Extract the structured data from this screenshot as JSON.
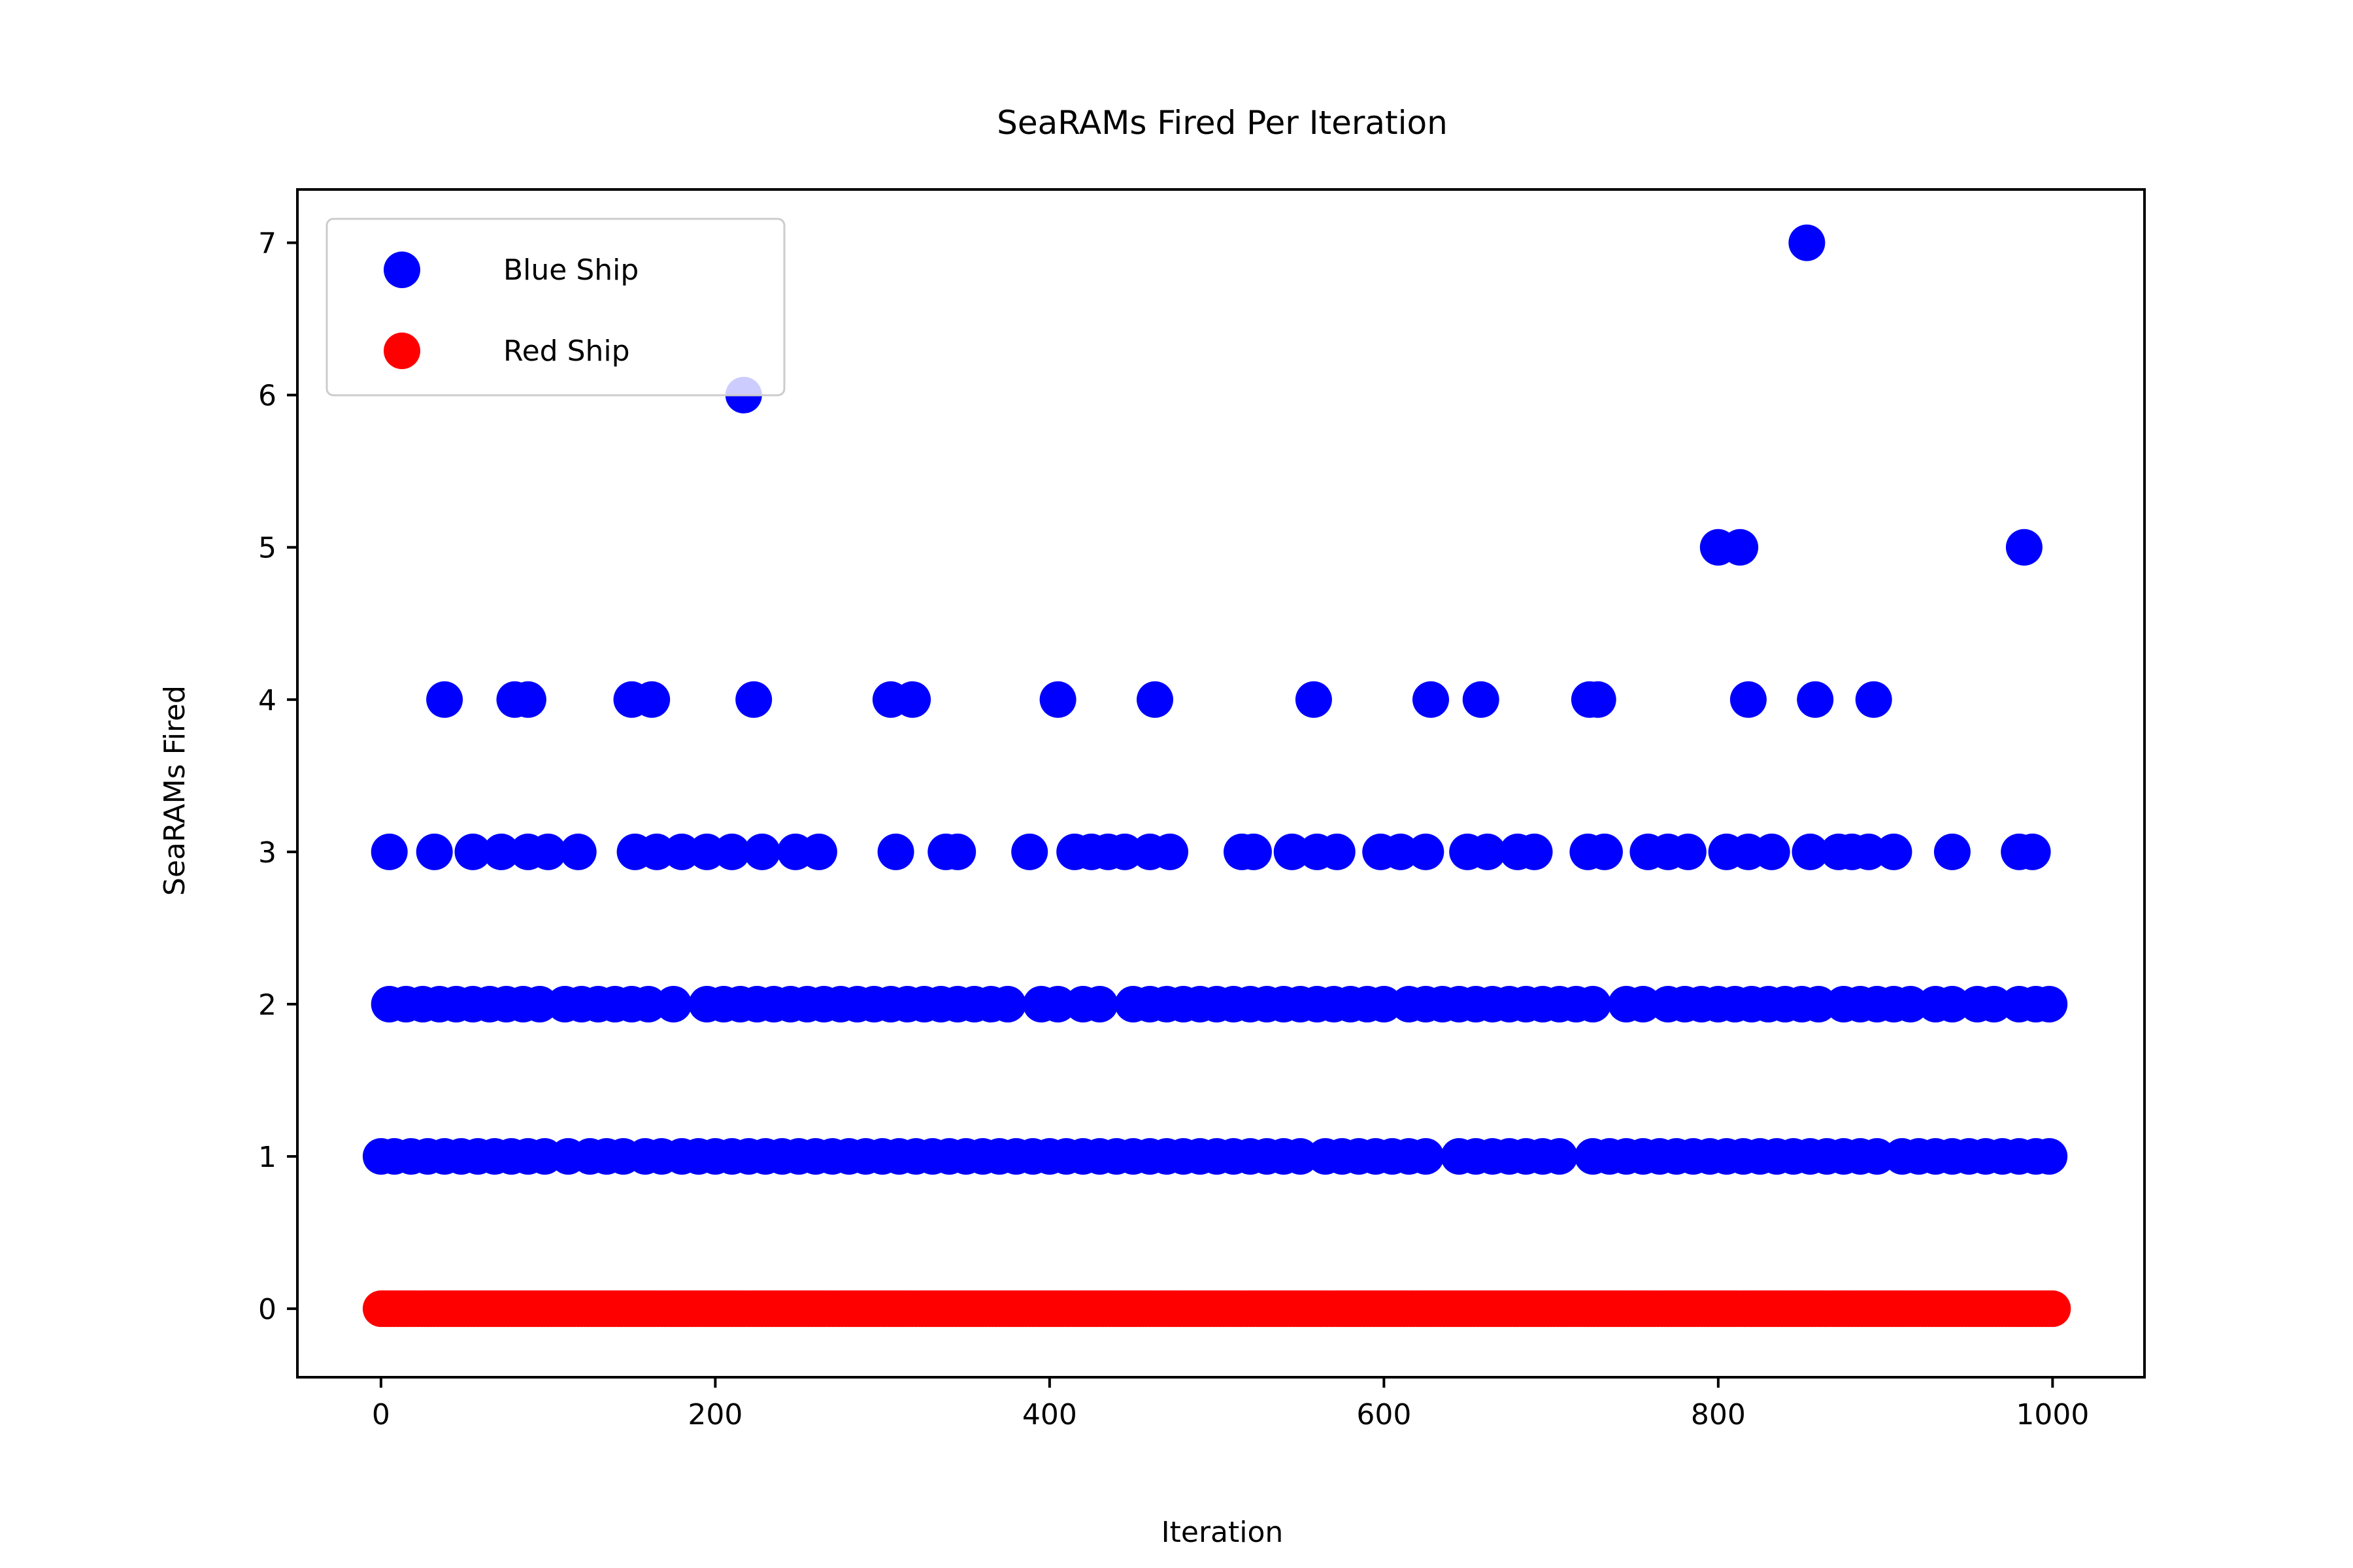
{
  "chart_data": {
    "type": "scatter",
    "title": "SeaRAMs Fired Per Iteration",
    "xlabel": "Iteration",
    "ylabel": "SeaRAMs Fired",
    "xlim": [
      -50,
      1055
    ],
    "ylim": [
      -0.45,
      7.35
    ],
    "xticks": [
      0,
      200,
      400,
      600,
      800,
      1000
    ],
    "yticks": [
      0,
      1,
      2,
      3,
      4,
      5,
      6,
      7
    ],
    "grid": false,
    "legend": {
      "position": "top-left",
      "entries": [
        "Blue Ship",
        "Red Ship"
      ]
    },
    "series": [
      {
        "name": "Blue Ship",
        "color": "#0000ff",
        "points": [
          [
            217,
            6
          ],
          [
            853,
            7
          ],
          [
            800,
            5
          ],
          [
            813,
            5
          ],
          [
            983,
            5
          ],
          [
            38,
            4
          ],
          [
            80,
            4
          ],
          [
            88,
            4
          ],
          [
            150,
            4
          ],
          [
            162,
            4
          ],
          [
            223,
            4
          ],
          [
            305,
            4
          ],
          [
            318,
            4
          ],
          [
            405,
            4
          ],
          [
            463,
            4
          ],
          [
            558,
            4
          ],
          [
            628,
            4
          ],
          [
            658,
            4
          ],
          [
            723,
            4
          ],
          [
            728,
            4
          ],
          [
            818,
            4
          ],
          [
            858,
            4
          ],
          [
            893,
            4
          ],
          [
            5,
            3
          ],
          [
            32,
            3
          ],
          [
            55,
            3
          ],
          [
            72,
            3
          ],
          [
            88,
            3
          ],
          [
            100,
            3
          ],
          [
            118,
            3
          ],
          [
            152,
            3
          ],
          [
            165,
            3
          ],
          [
            180,
            3
          ],
          [
            195,
            3
          ],
          [
            210,
            3
          ],
          [
            228,
            3
          ],
          [
            248,
            3
          ],
          [
            262,
            3
          ],
          [
            308,
            3
          ],
          [
            338,
            3
          ],
          [
            345,
            3
          ],
          [
            388,
            3
          ],
          [
            415,
            3
          ],
          [
            425,
            3
          ],
          [
            435,
            3
          ],
          [
            445,
            3
          ],
          [
            460,
            3
          ],
          [
            472,
            3
          ],
          [
            515,
            3
          ],
          [
            522,
            3
          ],
          [
            545,
            3
          ],
          [
            560,
            3
          ],
          [
            572,
            3
          ],
          [
            598,
            3
          ],
          [
            610,
            3
          ],
          [
            625,
            3
          ],
          [
            650,
            3
          ],
          [
            662,
            3
          ],
          [
            680,
            3
          ],
          [
            690,
            3
          ],
          [
            722,
            3
          ],
          [
            732,
            3
          ],
          [
            758,
            3
          ],
          [
            770,
            3
          ],
          [
            782,
            3
          ],
          [
            805,
            3
          ],
          [
            818,
            3
          ],
          [
            832,
            3
          ],
          [
            855,
            3
          ],
          [
            872,
            3
          ],
          [
            880,
            3
          ],
          [
            890,
            3
          ],
          [
            905,
            3
          ],
          [
            940,
            3
          ],
          [
            980,
            3
          ],
          [
            988,
            3
          ],
          [
            5,
            2
          ],
          [
            15,
            2
          ],
          [
            25,
            2
          ],
          [
            35,
            2
          ],
          [
            45,
            2
          ],
          [
            55,
            2
          ],
          [
            65,
            2
          ],
          [
            75,
            2
          ],
          [
            85,
            2
          ],
          [
            95,
            2
          ],
          [
            110,
            2
          ],
          [
            120,
            2
          ],
          [
            130,
            2
          ],
          [
            140,
            2
          ],
          [
            150,
            2
          ],
          [
            160,
            2
          ],
          [
            175,
            2
          ],
          [
            195,
            2
          ],
          [
            205,
            2
          ],
          [
            215,
            2
          ],
          [
            225,
            2
          ],
          [
            235,
            2
          ],
          [
            245,
            2
          ],
          [
            255,
            2
          ],
          [
            265,
            2
          ],
          [
            275,
            2
          ],
          [
            285,
            2
          ],
          [
            295,
            2
          ],
          [
            305,
            2
          ],
          [
            315,
            2
          ],
          [
            325,
            2
          ],
          [
            335,
            2
          ],
          [
            345,
            2
          ],
          [
            355,
            2
          ],
          [
            365,
            2
          ],
          [
            375,
            2
          ],
          [
            395,
            2
          ],
          [
            405,
            2
          ],
          [
            420,
            2
          ],
          [
            430,
            2
          ],
          [
            450,
            2
          ],
          [
            460,
            2
          ],
          [
            470,
            2
          ],
          [
            480,
            2
          ],
          [
            490,
            2
          ],
          [
            500,
            2
          ],
          [
            510,
            2
          ],
          [
            520,
            2
          ],
          [
            530,
            2
          ],
          [
            540,
            2
          ],
          [
            550,
            2
          ],
          [
            560,
            2
          ],
          [
            570,
            2
          ],
          [
            580,
            2
          ],
          [
            590,
            2
          ],
          [
            600,
            2
          ],
          [
            615,
            2
          ],
          [
            625,
            2
          ],
          [
            635,
            2
          ],
          [
            645,
            2
          ],
          [
            655,
            2
          ],
          [
            665,
            2
          ],
          [
            675,
            2
          ],
          [
            685,
            2
          ],
          [
            695,
            2
          ],
          [
            705,
            2
          ],
          [
            715,
            2
          ],
          [
            725,
            2
          ],
          [
            745,
            2
          ],
          [
            755,
            2
          ],
          [
            770,
            2
          ],
          [
            780,
            2
          ],
          [
            790,
            2
          ],
          [
            800,
            2
          ],
          [
            810,
            2
          ],
          [
            820,
            2
          ],
          [
            830,
            2
          ],
          [
            840,
            2
          ],
          [
            850,
            2
          ],
          [
            860,
            2
          ],
          [
            875,
            2
          ],
          [
            885,
            2
          ],
          [
            895,
            2
          ],
          [
            905,
            2
          ],
          [
            915,
            2
          ],
          [
            930,
            2
          ],
          [
            940,
            2
          ],
          [
            955,
            2
          ],
          [
            965,
            2
          ],
          [
            980,
            2
          ],
          [
            990,
            2
          ],
          [
            998,
            2
          ],
          [
            0,
            1
          ],
          [
            8,
            1
          ],
          [
            18,
            1
          ],
          [
            28,
            1
          ],
          [
            38,
            1
          ],
          [
            48,
            1
          ],
          [
            58,
            1
          ],
          [
            68,
            1
          ],
          [
            78,
            1
          ],
          [
            88,
            1
          ],
          [
            98,
            1
          ],
          [
            112,
            1
          ],
          [
            125,
            1
          ],
          [
            135,
            1
          ],
          [
            145,
            1
          ],
          [
            158,
            1
          ],
          [
            168,
            1
          ],
          [
            180,
            1
          ],
          [
            190,
            1
          ],
          [
            200,
            1
          ],
          [
            210,
            1
          ],
          [
            220,
            1
          ],
          [
            230,
            1
          ],
          [
            240,
            1
          ],
          [
            250,
            1
          ],
          [
            260,
            1
          ],
          [
            270,
            1
          ],
          [
            280,
            1
          ],
          [
            290,
            1
          ],
          [
            300,
            1
          ],
          [
            310,
            1
          ],
          [
            320,
            1
          ],
          [
            330,
            1
          ],
          [
            340,
            1
          ],
          [
            350,
            1
          ],
          [
            360,
            1
          ],
          [
            370,
            1
          ],
          [
            380,
            1
          ],
          [
            390,
            1
          ],
          [
            400,
            1
          ],
          [
            410,
            1
          ],
          [
            420,
            1
          ],
          [
            430,
            1
          ],
          [
            440,
            1
          ],
          [
            450,
            1
          ],
          [
            460,
            1
          ],
          [
            470,
            1
          ],
          [
            480,
            1
          ],
          [
            490,
            1
          ],
          [
            500,
            1
          ],
          [
            510,
            1
          ],
          [
            520,
            1
          ],
          [
            530,
            1
          ],
          [
            540,
            1
          ],
          [
            550,
            1
          ],
          [
            565,
            1
          ],
          [
            575,
            1
          ],
          [
            585,
            1
          ],
          [
            595,
            1
          ],
          [
            605,
            1
          ],
          [
            615,
            1
          ],
          [
            625,
            1
          ],
          [
            645,
            1
          ],
          [
            655,
            1
          ],
          [
            665,
            1
          ],
          [
            675,
            1
          ],
          [
            685,
            1
          ],
          [
            695,
            1
          ],
          [
            705,
            1
          ],
          [
            725,
            1
          ],
          [
            735,
            1
          ],
          [
            745,
            1
          ],
          [
            755,
            1
          ],
          [
            765,
            1
          ],
          [
            775,
            1
          ],
          [
            785,
            1
          ],
          [
            795,
            1
          ],
          [
            805,
            1
          ],
          [
            815,
            1
          ],
          [
            825,
            1
          ],
          [
            835,
            1
          ],
          [
            845,
            1
          ],
          [
            855,
            1
          ],
          [
            865,
            1
          ],
          [
            875,
            1
          ],
          [
            885,
            1
          ],
          [
            895,
            1
          ],
          [
            910,
            1
          ],
          [
            920,
            1
          ],
          [
            930,
            1
          ],
          [
            940,
            1
          ],
          [
            950,
            1
          ],
          [
            960,
            1
          ],
          [
            970,
            1
          ],
          [
            980,
            1
          ],
          [
            990,
            1
          ],
          [
            998,
            1
          ]
        ]
      },
      {
        "name": "Red Ship",
        "color": "#ff0000",
        "x_range": [
          0,
          1000
        ],
        "y": 0
      }
    ]
  }
}
